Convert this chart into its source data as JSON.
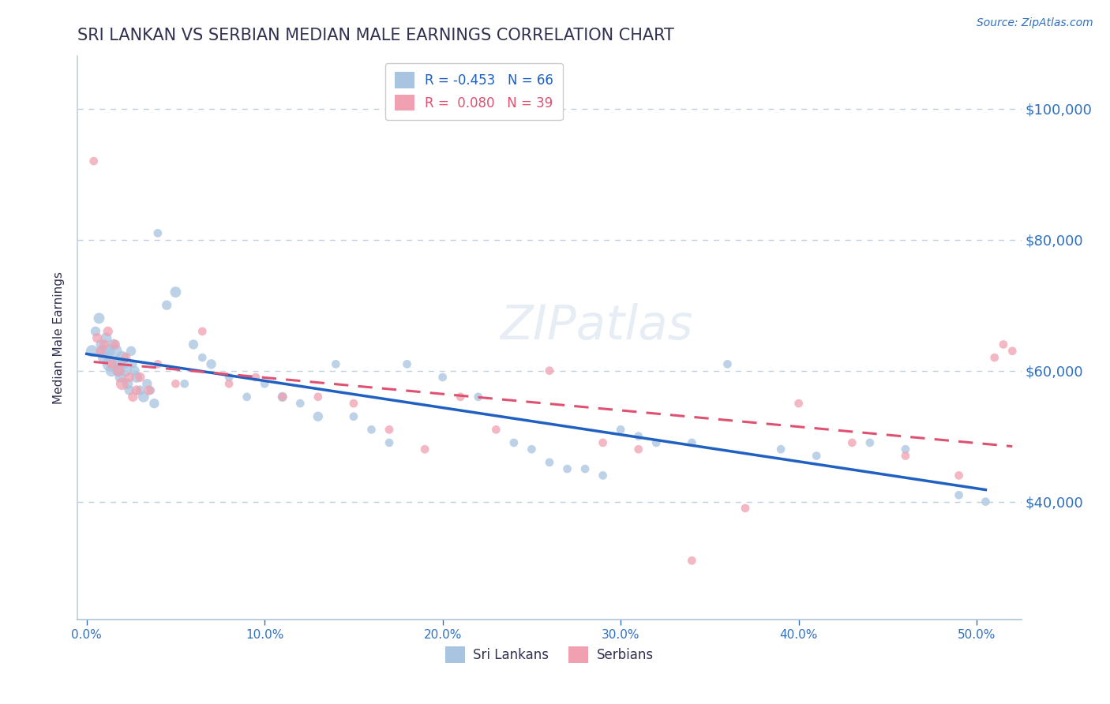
{
  "title": "SRI LANKAN VS SERBIAN MEDIAN MALE EARNINGS CORRELATION CHART",
  "source": "Source: ZipAtlas.com",
  "ylabel": "Median Male Earnings",
  "xlabel_ticks": [
    "0.0%",
    "10.0%",
    "20.0%",
    "30.0%",
    "40.0%",
    "50.0%"
  ],
  "xlabel_vals": [
    0.0,
    0.1,
    0.2,
    0.3,
    0.4,
    0.5
  ],
  "ytick_labels": [
    "$40,000",
    "$60,000",
    "$80,000",
    "$100,000"
  ],
  "ytick_vals": [
    40000,
    60000,
    80000,
    100000
  ],
  "xlim": [
    -0.005,
    0.525
  ],
  "ylim": [
    22000,
    108000
  ],
  "sri_lankans_R": -0.453,
  "sri_lankans_N": 66,
  "serbians_R": 0.08,
  "serbians_N": 39,
  "sri_lankan_color": "#a8c4e0",
  "serbian_color": "#f0a0b0",
  "sri_lankan_line_color": "#2060c0",
  "serbian_line_color": "#e05070",
  "background_color": "#ffffff",
  "grid_color": "#c0d0e0",
  "title_color": "#303050",
  "axis_label_color": "#3070c0",
  "watermark": "ZIPatlas",
  "sri_lankans_x": [
    0.003,
    0.005,
    0.007,
    0.008,
    0.009,
    0.01,
    0.011,
    0.012,
    0.013,
    0.014,
    0.015,
    0.016,
    0.017,
    0.018,
    0.019,
    0.02,
    0.021,
    0.022,
    0.023,
    0.024,
    0.025,
    0.026,
    0.027,
    0.028,
    0.03,
    0.032,
    0.034,
    0.036,
    0.038,
    0.04,
    0.045,
    0.05,
    0.055,
    0.06,
    0.065,
    0.07,
    0.08,
    0.09,
    0.1,
    0.11,
    0.12,
    0.13,
    0.14,
    0.15,
    0.16,
    0.17,
    0.18,
    0.2,
    0.22,
    0.24,
    0.25,
    0.26,
    0.27,
    0.28,
    0.29,
    0.3,
    0.31,
    0.32,
    0.34,
    0.36,
    0.39,
    0.41,
    0.44,
    0.46,
    0.49,
    0.505
  ],
  "sri_lankans_y": [
    63000,
    66000,
    68000,
    64000,
    63000,
    62000,
    65000,
    63000,
    61000,
    60000,
    64000,
    63000,
    61000,
    60000,
    59000,
    62000,
    61000,
    60000,
    58000,
    57000,
    63000,
    61000,
    60000,
    59000,
    57000,
    56000,
    58000,
    57000,
    55000,
    81000,
    70000,
    72000,
    58000,
    64000,
    62000,
    61000,
    59000,
    56000,
    58000,
    56000,
    55000,
    53000,
    61000,
    53000,
    51000,
    49000,
    61000,
    59000,
    56000,
    49000,
    48000,
    46000,
    45000,
    45000,
    44000,
    51000,
    50000,
    49000,
    49000,
    61000,
    48000,
    47000,
    49000,
    48000,
    41000,
    40000
  ],
  "sri_lankans_size": [
    120,
    80,
    100,
    80,
    120,
    140,
    100,
    160,
    180,
    120,
    100,
    160,
    80,
    130,
    100,
    140,
    80,
    120,
    100,
    80,
    80,
    60,
    80,
    100,
    80,
    100,
    80,
    60,
    80,
    60,
    80,
    100,
    60,
    80,
    60,
    80,
    60,
    60,
    60,
    80,
    60,
    80,
    60,
    60,
    60,
    60,
    60,
    60,
    60,
    60,
    60,
    60,
    60,
    60,
    60,
    60,
    60,
    60,
    60,
    60,
    60,
    60,
    60,
    60,
    60,
    60
  ],
  "serbians_x": [
    0.004,
    0.006,
    0.008,
    0.01,
    0.012,
    0.014,
    0.016,
    0.018,
    0.02,
    0.022,
    0.024,
    0.026,
    0.028,
    0.03,
    0.035,
    0.04,
    0.05,
    0.065,
    0.08,
    0.095,
    0.11,
    0.13,
    0.15,
    0.17,
    0.19,
    0.21,
    0.23,
    0.26,
    0.29,
    0.31,
    0.34,
    0.37,
    0.4,
    0.43,
    0.46,
    0.49,
    0.51,
    0.515,
    0.52
  ],
  "serbians_y": [
    92000,
    65000,
    63000,
    64000,
    66000,
    61000,
    64000,
    60000,
    58000,
    62000,
    59000,
    56000,
    57000,
    59000,
    57000,
    61000,
    58000,
    66000,
    58000,
    59000,
    56000,
    56000,
    55000,
    51000,
    48000,
    56000,
    51000,
    60000,
    49000,
    48000,
    31000,
    39000,
    55000,
    49000,
    47000,
    44000,
    62000,
    64000,
    63000
  ],
  "serbians_size": [
    60,
    80,
    80,
    80,
    80,
    80,
    80,
    100,
    130,
    80,
    80,
    80,
    80,
    80,
    80,
    60,
    60,
    60,
    60,
    60,
    60,
    60,
    60,
    60,
    60,
    60,
    60,
    60,
    60,
    60,
    60,
    60,
    60,
    60,
    60,
    60,
    60,
    60,
    60
  ]
}
